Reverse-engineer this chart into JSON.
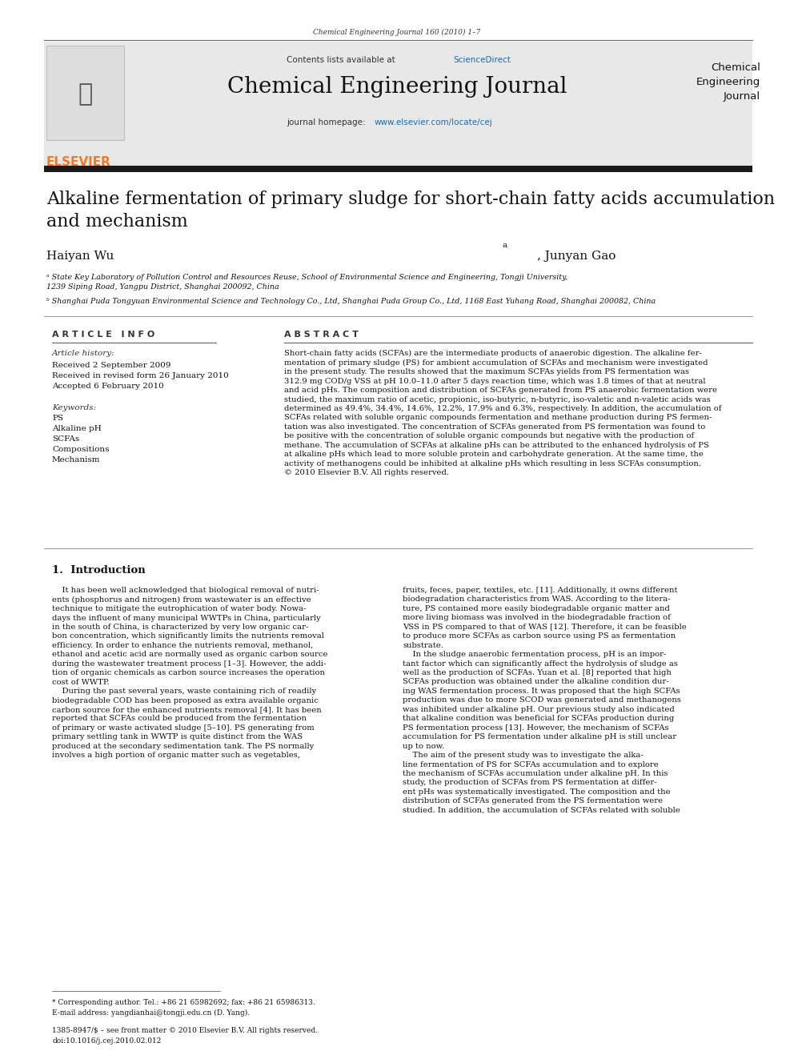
{
  "page_width": 9.92,
  "page_height": 13.23,
  "bg_color": "#ffffff",
  "top_journal_line": "Chemical Engineering Journal 160 (2010) 1–7",
  "header_bg": "#e8e8e8",
  "sciencedirect_color": "#1a6ab0",
  "journal_title": "Chemical Engineering Journal",
  "homepage_color": "#1a6ab0",
  "dark_bar_color": "#1a1a1a",
  "paper_title": "Alkaline fermentation of primary sludge for short-chain fatty acids accumulation\nand mechanism",
  "affil_a": "ᵃ State Key Laboratory of Pollution Control and Resources Reuse, School of Environmental Science and Engineering, Tongji University,\n1239 Siping Road, Yangpu District, Shanghai 200092, China",
  "affil_b": "ᵇ Shanghai Puda Tongyuan Environmental Science and Technology Co., Ltd, Shanghai Puda Group Co., Ltd, 1168 East Yuhang Road, Shanghai 200082, China",
  "article_info_header": "A R T I C L E   I N F O",
  "abstract_header": "A B S T R A C T",
  "article_history_header": "Article history:",
  "received": "Received 2 September 2009",
  "revised": "Received in revised form 26 January 2010",
  "accepted": "Accepted 6 February 2010",
  "keywords_header": "Keywords:",
  "keywords": [
    "PS",
    "Alkaline pH",
    "SCFAs",
    "Compositions",
    "Mechanism"
  ],
  "abstract_text": "Short-chain fatty acids (SCFAs) are the intermediate products of anaerobic digestion. The alkaline fer-\nmentation of primary sludge (PS) for ambient accumulation of SCFAs and mechanism were investigated\nin the present study. The results showed that the maximum SCFAs yields from PS fermentation was\n312.9 mg COD/g VSS at pH 10.0–11.0 after 5 days reaction time, which was 1.8 times of that at neutral\nand acid pHs. The composition and distribution of SCFAs generated from PS anaerobic fermentation were\nstudied, the maximum ratio of acetic, propionic, iso-butyric, n-butyric, iso-valetic and n-valetic acids was\ndetermined as 49.4%, 34.4%, 14.6%, 12.2%, 17.9% and 6.3%, respectively. In addition, the accumulation of\nSCFAs related with soluble organic compounds fermentation and methane production during PS fermen-\ntation was also investigated. The concentration of SCFAs generated from PS fermentation was found to\nbe positive with the concentration of soluble organic compounds but negative with the production of\nmethane. The accumulation of SCFAs at alkaline pHs can be attributed to the enhanced hydrolysis of PS\nat alkaline pHs which lead to more soluble protein and carbohydrate generation. At the same time, the\nactivity of methanogens could be inhibited at alkaline pHs which resulting in less SCFAs consumption.\n© 2010 Elsevier B.V. All rights reserved.",
  "intro_heading": "1.  Introduction",
  "intro_col1": "    It has been well acknowledged that biological removal of nutri-\nents (phosphorus and nitrogen) from wastewater is an effective\ntechnique to mitigate the eutrophication of water body. Nowa-\ndays the influent of many municipal WWTPs in China, particularly\nin the south of China, is characterized by very low organic car-\nbon concentration, which significantly limits the nutrients removal\nefficiency. In order to enhance the nutrients removal, methanol,\nethanol and acetic acid are normally used as organic carbon source\nduring the wastewater treatment process [1–3]. However, the addi-\ntion of organic chemicals as carbon source increases the operation\ncost of WWTP.\n    During the past several years, waste containing rich of readily\nbiodegradable COD has been proposed as extra available organic\ncarbon source for the enhanced nutrients removal [4]. It has been\nreported that SCFAs could be produced from the fermentation\nof primary or waste activated sludge [5–10]. PS generating from\nprimary settling tank in WWTP is quite distinct from the WAS\nproduced at the secondary sedimentation tank. The PS normally\ninvolves a high portion of organic matter such as vegetables,",
  "intro_col2": "fruits, feces, paper, textiles, etc. [11]. Additionally, it owns different\nbiodegradation characteristics from WAS. According to the litera-\nture, PS contained more easily biodegradable organic matter and\nmore living biomass was involved in the biodegradable fraction of\nVSS in PS compared to that of WAS [12]. Therefore, it can be feasible\nto produce more SCFAs as carbon source using PS as fermentation\nsubstrate.\n    In the sludge anaerobic fermentation process, pH is an impor-\ntant factor which can significantly affect the hydrolysis of sludge as\nwell as the production of SCFAs. Yuan et al. [8] reported that high\nSCFAs production was obtained under the alkaline condition dur-\ning WAS fermentation process. It was proposed that the high SCFAs\nproduction was due to more SCOD was generated and methanogens\nwas inhibited under alkaline pH. Our previous study also indicated\nthat alkaline condition was beneficial for SCFAs production during\nPS fermentation process [13]. However, the mechanism of SCFAs\naccumulation for PS fermentation under alkaline pH is still unclear\nup to now.\n    The aim of the present study was to investigate the alka-\nline fermentation of PS for SCFAs accumulation and to explore\nthe mechanism of SCFAs accumulation under alkaline pH. In this\nstudy, the production of SCFAs from PS fermentation at differ-\nent pHs was systematically investigated. The composition and the\ndistribution of SCFAs generated from the PS fermentation were\nstudied. In addition, the accumulation of SCFAs related with soluble",
  "footnote_line1": "* Corresponding author. Tel.: +86 21 65982692; fax: +86 21 65986313.",
  "footnote_line2": "E-mail address: yangdianhai@tongji.edu.cn (D. Yang).",
  "issn_line": "1385-8947/$ – see front matter © 2010 Elsevier B.V. All rights reserved.",
  "doi_line": "doi:10.1016/j.cej.2010.02.012",
  "elsevier_orange": "#f47920",
  "link_blue": "#1a6ab0"
}
